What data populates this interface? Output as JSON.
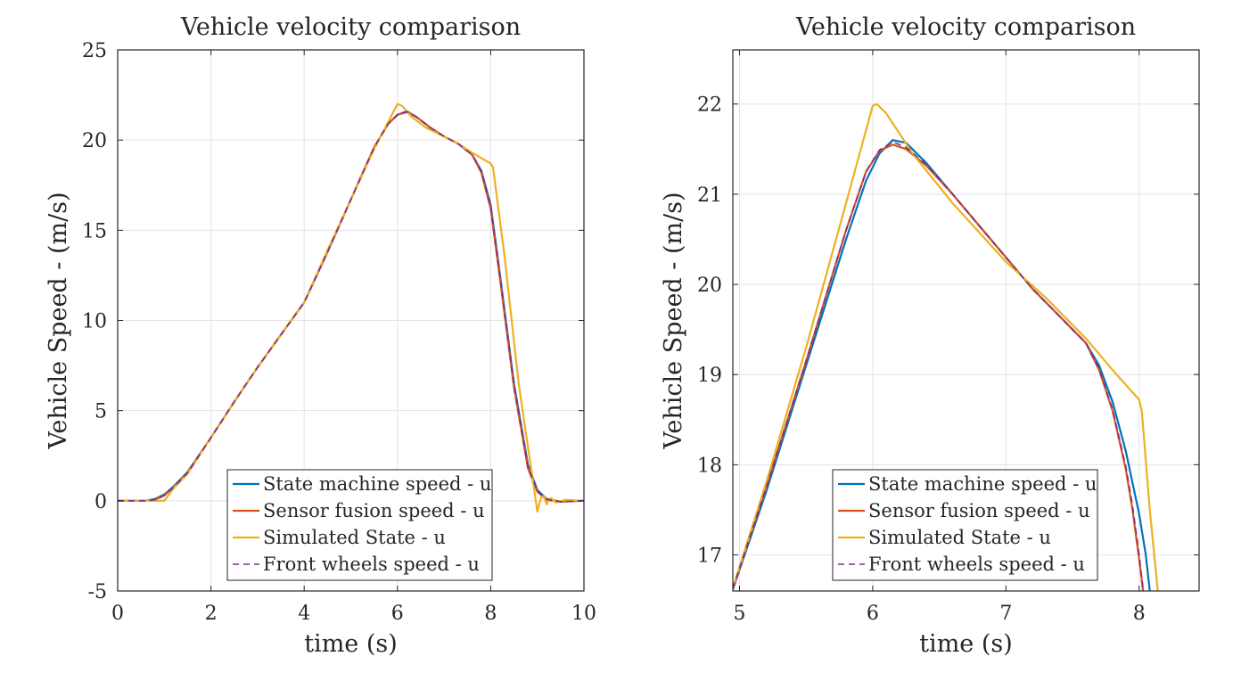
{
  "colors": {
    "state_machine": "#0072BD",
    "sensor_fusion": "#D95319",
    "simulated": "#EDB120",
    "front_wheels": "#7E2F8E",
    "grid": "#e3e3e3",
    "axis": "#262626"
  },
  "chart_data": [
    {
      "type": "line",
      "title": "Vehicle velocity comparison",
      "xlabel": "time (s)",
      "ylabel": "Vehicle Speed - (m/s)",
      "xlim": [
        0,
        10
      ],
      "ylim": [
        -5,
        25
      ],
      "xticks": [
        "0",
        "2",
        "4",
        "6",
        "8",
        "10"
      ],
      "yticks": [
        "-5",
        "0",
        "5",
        "10",
        "15",
        "20",
        "25"
      ],
      "grid": true,
      "legend_position": "bottom-right",
      "series": [
        {
          "name": "State machine speed - u",
          "style": "solid",
          "color_key": "state_machine",
          "x": [
            0,
            0.6,
            0.8,
            1.0,
            1.2,
            1.5,
            2.0,
            2.5,
            3.0,
            3.5,
            4.0,
            4.5,
            5.0,
            5.5,
            5.8,
            6.0,
            6.2,
            6.4,
            6.7,
            7.0,
            7.3,
            7.6,
            7.8,
            8.0,
            8.2,
            8.5,
            8.8,
            9.0,
            9.2,
            9.5,
            10.0
          ],
          "y": [
            0,
            0,
            0.1,
            0.35,
            0.8,
            1.6,
            3.5,
            5.5,
            7.4,
            9.2,
            11.0,
            13.8,
            16.7,
            19.6,
            20.9,
            21.4,
            21.6,
            21.3,
            20.7,
            20.2,
            19.8,
            19.2,
            18.3,
            16.4,
            12.5,
            6.5,
            2.0,
            0.6,
            0.1,
            -0.05,
            0
          ]
        },
        {
          "name": "Sensor fusion speed - u",
          "style": "solid",
          "color_key": "sensor_fusion",
          "x": [
            0,
            0.6,
            0.8,
            1.0,
            1.2,
            1.5,
            2.0,
            2.5,
            3.0,
            3.5,
            4.0,
            4.5,
            5.0,
            5.5,
            5.8,
            6.0,
            6.2,
            6.4,
            6.7,
            7.0,
            7.3,
            7.6,
            7.8,
            8.0,
            8.2,
            8.5,
            8.8,
            9.0,
            9.2,
            9.5,
            10.0
          ],
          "y": [
            0,
            0,
            0.05,
            0.3,
            0.75,
            1.55,
            3.5,
            5.5,
            7.4,
            9.2,
            11.0,
            13.8,
            16.7,
            19.6,
            20.9,
            21.4,
            21.55,
            21.3,
            20.7,
            20.2,
            19.8,
            19.2,
            18.2,
            16.2,
            12.3,
            6.3,
            1.8,
            0.5,
            0.05,
            -0.05,
            0
          ]
        },
        {
          "name": "Simulated State - u",
          "style": "solid",
          "color_key": "simulated",
          "x": [
            0,
            1.0,
            1.2,
            1.5,
            2.0,
            2.5,
            3.0,
            3.5,
            4.0,
            4.5,
            5.0,
            5.5,
            6.0,
            6.1,
            6.3,
            6.6,
            7.0,
            7.3,
            7.6,
            8.0,
            8.05,
            8.3,
            8.6,
            8.9,
            9.0,
            9.05,
            9.1,
            9.15,
            9.2,
            9.25,
            9.3,
            9.4,
            9.6,
            10.0
          ],
          "y": [
            0,
            0,
            0.7,
            1.5,
            3.5,
            5.5,
            7.4,
            9.2,
            11.0,
            13.9,
            16.7,
            19.5,
            22.0,
            21.9,
            21.3,
            20.7,
            20.2,
            19.8,
            19.3,
            18.7,
            18.5,
            13.5,
            6.5,
            1.2,
            -0.6,
            -0.1,
            0.3,
            0.2,
            -0.2,
            0.1,
            0.15,
            -0.1,
            0.05,
            0
          ]
        },
        {
          "name": "Front wheels speed - u",
          "style": "dashed",
          "color_key": "front_wheels",
          "x": [
            0,
            0.6,
            0.8,
            1.0,
            1.2,
            1.5,
            2.0,
            2.5,
            3.0,
            3.5,
            4.0,
            4.5,
            5.0,
            5.5,
            5.8,
            6.0,
            6.2,
            6.4,
            6.7,
            7.0,
            7.3,
            7.6,
            7.8,
            8.0,
            8.2,
            8.5,
            8.8,
            9.0,
            9.2,
            9.5,
            10.0
          ],
          "y": [
            0,
            0,
            0.05,
            0.3,
            0.75,
            1.55,
            3.5,
            5.5,
            7.4,
            9.2,
            11.0,
            13.8,
            16.7,
            19.6,
            20.9,
            21.4,
            21.58,
            21.3,
            20.7,
            20.2,
            19.8,
            19.2,
            18.25,
            16.3,
            12.4,
            6.4,
            1.9,
            0.55,
            0.08,
            -0.05,
            0
          ]
        }
      ]
    },
    {
      "type": "line",
      "title": "Vehicle velocity comparison",
      "xlabel": "time (s)",
      "ylabel": "Vehicle Speed - (m/s)",
      "xlim": [
        4.95,
        8.45
      ],
      "ylim": [
        16.6,
        22.6
      ],
      "xticks": [
        "5",
        "6",
        "7",
        "8"
      ],
      "yticks": [
        "17",
        "18",
        "19",
        "20",
        "21",
        "22"
      ],
      "grid": true,
      "legend_position": "bottom-center",
      "series": [
        {
          "name": "State machine speed - u",
          "style": "solid",
          "color_key": "state_machine",
          "x": [
            4.9,
            5.2,
            5.5,
            5.8,
            5.95,
            6.05,
            6.15,
            6.25,
            6.4,
            6.6,
            6.8,
            7.0,
            7.2,
            7.4,
            7.6,
            7.7,
            7.8,
            7.9,
            8.0,
            8.05,
            8.08,
            8.12
          ],
          "y": [
            16.4,
            17.7,
            19.1,
            20.5,
            21.15,
            21.45,
            21.6,
            21.57,
            21.35,
            21.0,
            20.65,
            20.3,
            19.95,
            19.65,
            19.35,
            19.1,
            18.7,
            18.15,
            17.45,
            17.0,
            16.6,
            16.2
          ]
        },
        {
          "name": "Sensor fusion speed - u",
          "style": "solid",
          "color_key": "sensor_fusion",
          "x": [
            4.9,
            5.2,
            5.5,
            5.8,
            5.95,
            6.05,
            6.15,
            6.25,
            6.4,
            6.6,
            6.8,
            7.0,
            7.2,
            7.4,
            7.6,
            7.7,
            7.8,
            7.9,
            7.95,
            8.0,
            8.03,
            8.06
          ],
          "y": [
            16.4,
            17.75,
            19.15,
            20.6,
            21.25,
            21.48,
            21.55,
            21.5,
            21.32,
            21.0,
            20.65,
            20.3,
            19.95,
            19.65,
            19.35,
            19.05,
            18.6,
            17.95,
            17.5,
            16.95,
            16.6,
            16.2
          ]
        },
        {
          "name": "Simulated State - u",
          "style": "solid",
          "color_key": "simulated",
          "x": [
            4.9,
            5.2,
            5.5,
            5.8,
            6.0,
            6.03,
            6.1,
            6.3,
            6.6,
            7.0,
            7.3,
            7.6,
            7.8,
            8.0,
            8.02,
            8.08,
            8.14,
            8.18
          ],
          "y": [
            16.4,
            17.8,
            19.3,
            20.9,
            21.98,
            22.0,
            21.9,
            21.45,
            20.9,
            20.25,
            19.85,
            19.4,
            19.05,
            18.72,
            18.6,
            17.5,
            16.6,
            16.0
          ]
        },
        {
          "name": "Front wheels speed - u",
          "style": "dashed",
          "color_key": "front_wheels",
          "x": [
            4.9,
            5.2,
            5.5,
            5.8,
            5.95,
            6.05,
            6.15,
            6.25,
            6.4,
            6.6,
            6.8,
            7.0,
            7.2,
            7.4,
            7.6,
            7.7,
            7.8,
            7.9,
            7.95,
            8.0,
            8.03,
            8.06
          ],
          "y": [
            16.4,
            17.75,
            19.15,
            20.6,
            21.25,
            21.49,
            21.58,
            21.52,
            21.33,
            21.0,
            20.65,
            20.3,
            19.95,
            19.65,
            19.35,
            19.06,
            18.62,
            17.98,
            17.55,
            17.0,
            16.62,
            16.2
          ]
        }
      ]
    }
  ]
}
